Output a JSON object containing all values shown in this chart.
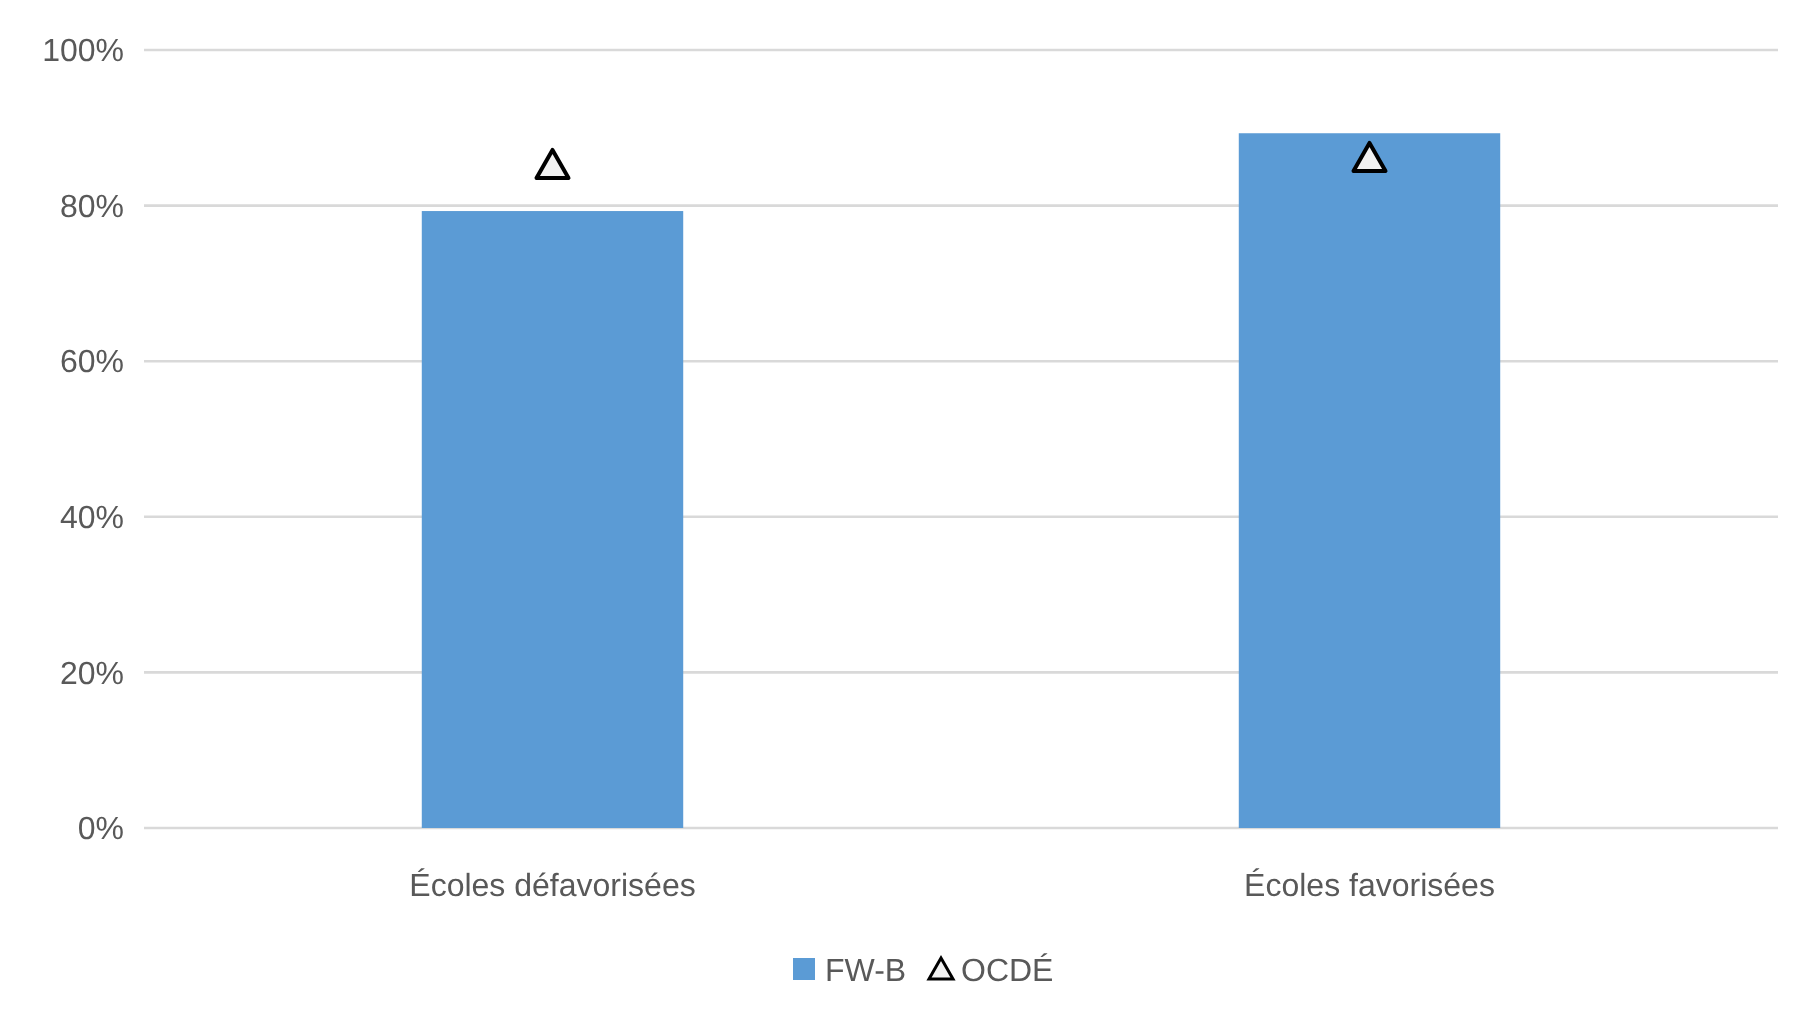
{
  "chart_data": {
    "type": "bar",
    "categories": [
      "Écoles défavorisées",
      "Écoles favorisées"
    ],
    "series": [
      {
        "name": "FW-B",
        "color": "#5b9bd5",
        "values": [
          79.3,
          89.3
        ]
      },
      {
        "name": "OCDÉ",
        "type": "scatter",
        "color": "#000000",
        "marker": "triangle",
        "values": [
          85.1,
          86.0
        ]
      }
    ],
    "ylim": [
      0,
      100
    ],
    "yticks": [
      {
        "value": 0,
        "label": "0%"
      },
      {
        "value": 20,
        "label": "20%"
      },
      {
        "value": 40,
        "label": "40%"
      },
      {
        "value": 60,
        "label": "60%"
      },
      {
        "value": 80,
        "label": "80%"
      },
      {
        "value": 100,
        "label": "100%"
      }
    ],
    "grid": "y",
    "legend": "bottom"
  }
}
